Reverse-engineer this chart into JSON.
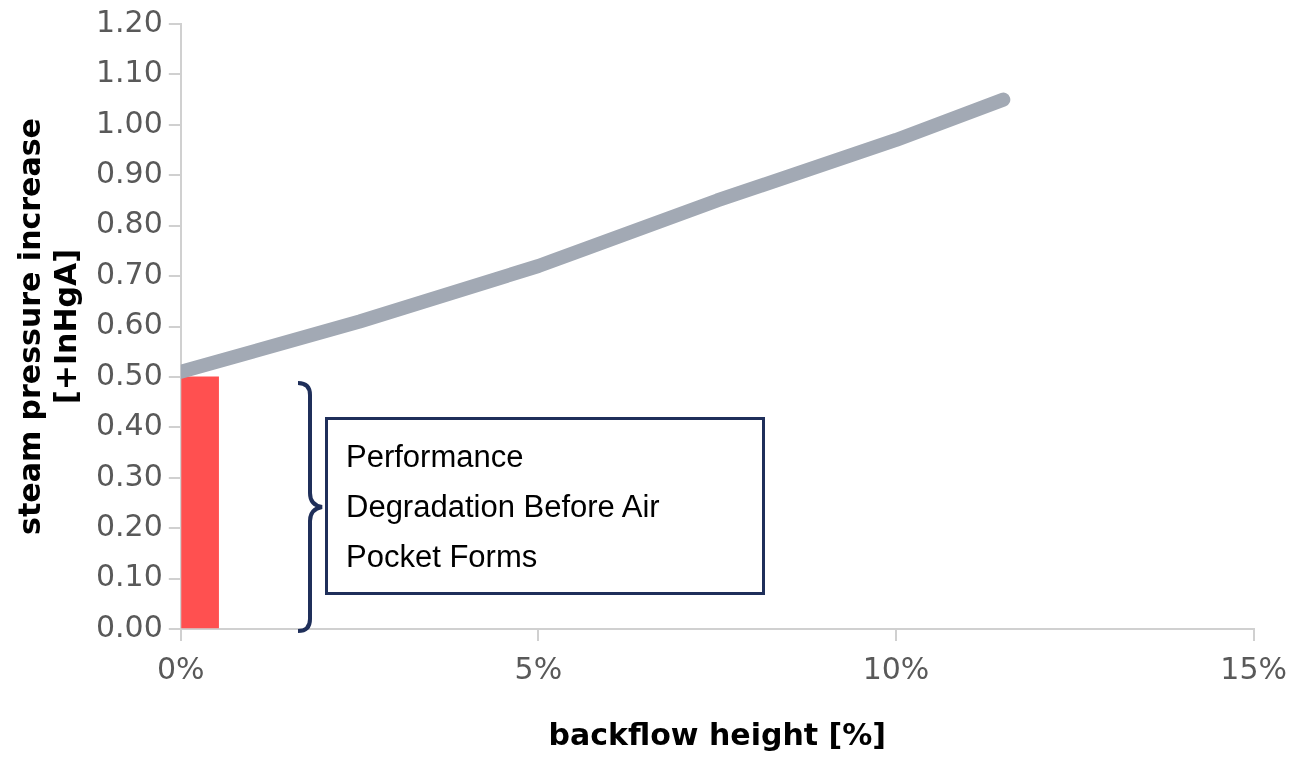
{
  "chart_data": {
    "type": "line",
    "xlabel": "backflow height [%]",
    "ylabel": "steam pressure increase [+InHgA]",
    "xlim": [
      0,
      15
    ],
    "xticks": [
      {
        "value": 0,
        "label": "0%"
      },
      {
        "value": 5,
        "label": "5%"
      },
      {
        "value": 10,
        "label": "10%"
      },
      {
        "value": 15,
        "label": "15%"
      }
    ],
    "ylim": [
      0,
      1.2
    ],
    "yticks": [
      {
        "value": 0,
        "label": "0.00"
      },
      {
        "value": 0.1,
        "label": "0.10"
      },
      {
        "value": 0.2,
        "label": "0.20"
      },
      {
        "value": 0.3,
        "label": "0.30"
      },
      {
        "value": 0.4,
        "label": "0.40"
      },
      {
        "value": 0.5,
        "label": "0.50"
      },
      {
        "value": 0.6,
        "label": "0.60"
      },
      {
        "value": 0.7,
        "label": "0.70"
      },
      {
        "value": 0.8,
        "label": "0.80"
      },
      {
        "value": 0.9,
        "label": "0.90"
      },
      {
        "value": 1.0,
        "label": "1.00"
      },
      {
        "value": 1.1,
        "label": "1.10"
      },
      {
        "value": 1.2,
        "label": "1.20"
      }
    ],
    "series": [
      {
        "color": "#a2a9b4",
        "x": [
          0,
          2.5,
          5,
          7.5,
          10,
          11.5
        ],
        "values": [
          0.51,
          0.61,
          0.72,
          0.85,
          0.97,
          1.05
        ]
      },
      {
        "type": "bar",
        "color": "#ff5050",
        "x": [
          0.27
        ],
        "values": [
          0.5
        ]
      }
    ],
    "annotations": [
      "Performance Degradation Before Air Pocket Forms"
    ]
  }
}
